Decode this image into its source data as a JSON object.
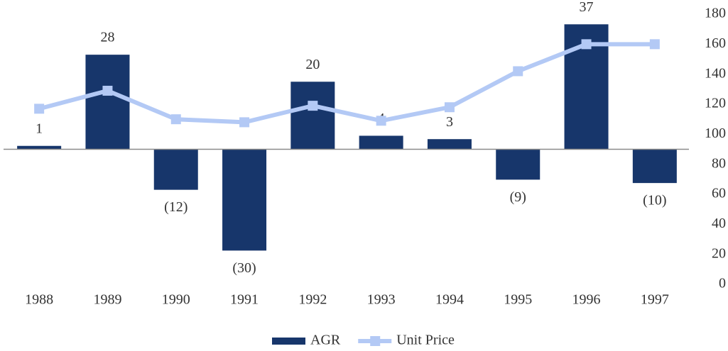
{
  "chart_data": {
    "type": "bar_line",
    "categories": [
      "1988",
      "1989",
      "1990",
      "1991",
      "1992",
      "1993",
      "1994",
      "1995",
      "1996",
      "1997"
    ],
    "series": [
      {
        "name": "AGR",
        "type": "bar",
        "color": "#17366b",
        "axis": "y",
        "values": [
          1,
          28,
          -12,
          -30,
          20,
          4,
          3,
          -9,
          37,
          -10
        ],
        "value_labels": [
          "1",
          "28",
          "(12)",
          "(30)",
          "20",
          "4",
          "3",
          "(9)",
          "37",
          "(10)"
        ]
      },
      {
        "name": "Unit Price",
        "type": "line",
        "color": "#b3c9f5",
        "axis": "y2",
        "values": [
          117,
          129,
          110,
          108,
          119,
          109,
          118,
          142,
          160,
          160
        ]
      }
    ],
    "ylim": [
      -40,
      40
    ],
    "y2lim": [
      0,
      180
    ],
    "y2ticks": [
      0,
      20,
      40,
      60,
      80,
      100,
      120,
      140,
      160,
      180
    ],
    "legend": "bottom"
  }
}
